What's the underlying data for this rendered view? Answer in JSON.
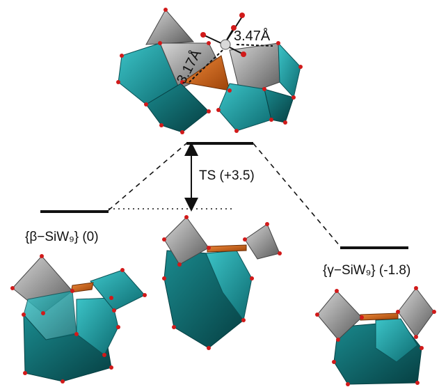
{
  "labels": {
    "ts": "TS (+3.5)",
    "beta": "{β−SiW₉} (0)",
    "gamma": "{γ−SiW₉} (-1.8)",
    "dist_long": "3.47Å",
    "dist_short": "3.17Å"
  },
  "energies": {
    "ts": 3.5,
    "beta": 0,
    "gamma": -1.8
  },
  "colors": {
    "teal": "#1aa3a8",
    "teal_dark": "#0d6b70",
    "grey": "#9a9a9a",
    "grey_dark": "#5a5a5a",
    "orange": "#d96a1c",
    "oxygen": "#d11a1a"
  }
}
